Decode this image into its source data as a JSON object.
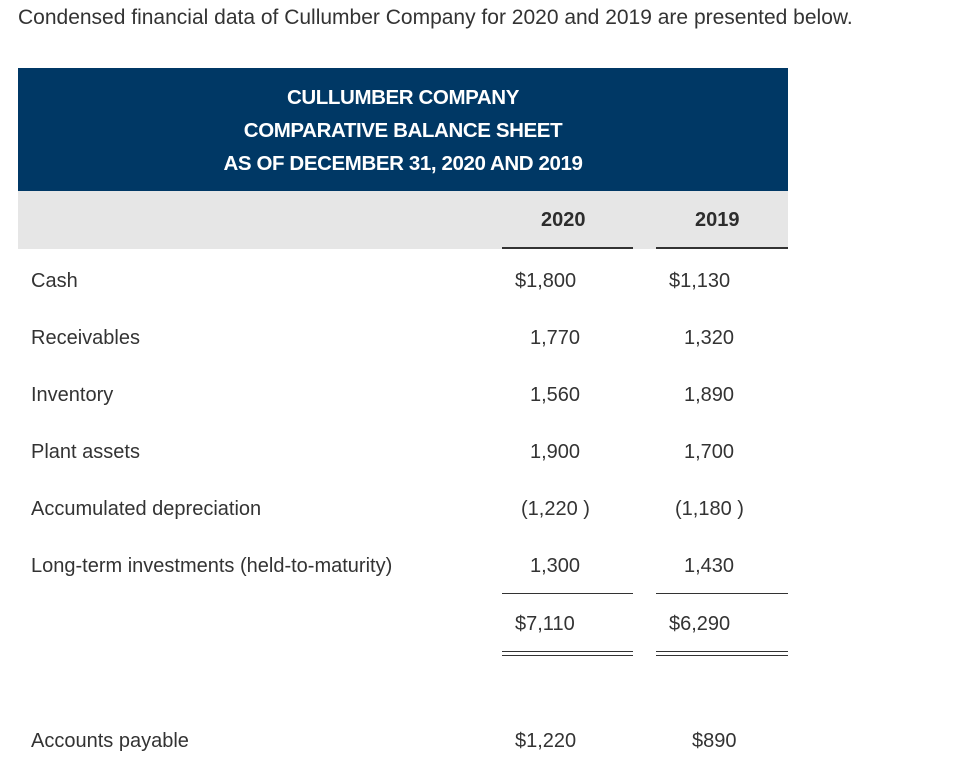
{
  "intro": "Condensed financial data of Cullumber Company for 2020 and 2019 are presented below.",
  "header": {
    "line1": "CULLUMBER COMPANY",
    "line2": "COMPARATIVE BALANCE SHEET",
    "line3": "AS OF DECEMBER 31, 2020 AND 2019"
  },
  "columns": {
    "y2020": "2020",
    "y2019": "2019"
  },
  "rows": [
    {
      "label": "Cash",
      "v2020": "$1,800",
      "v2019": "$1,130"
    },
    {
      "label": "Receivables",
      "v2020": "1,770",
      "v2019": "1,320"
    },
    {
      "label": "Inventory",
      "v2020": "1,560",
      "v2019": "1,890"
    },
    {
      "label": "Plant assets",
      "v2020": "1,900",
      "v2019": "1,700"
    },
    {
      "label": "Accumulated depreciation",
      "v2020": "(1,220 )",
      "v2019": "(1,180 )"
    },
    {
      "label": "Long-term investments (held-to-maturity)",
      "v2020": "1,300",
      "v2019": "1,430"
    }
  ],
  "total": {
    "v2020": "$7,110",
    "v2019": "$6,290"
  },
  "liabilities": [
    {
      "label": "Accounts payable",
      "v2020": "$1,220",
      "v2019": "$890"
    }
  ]
}
